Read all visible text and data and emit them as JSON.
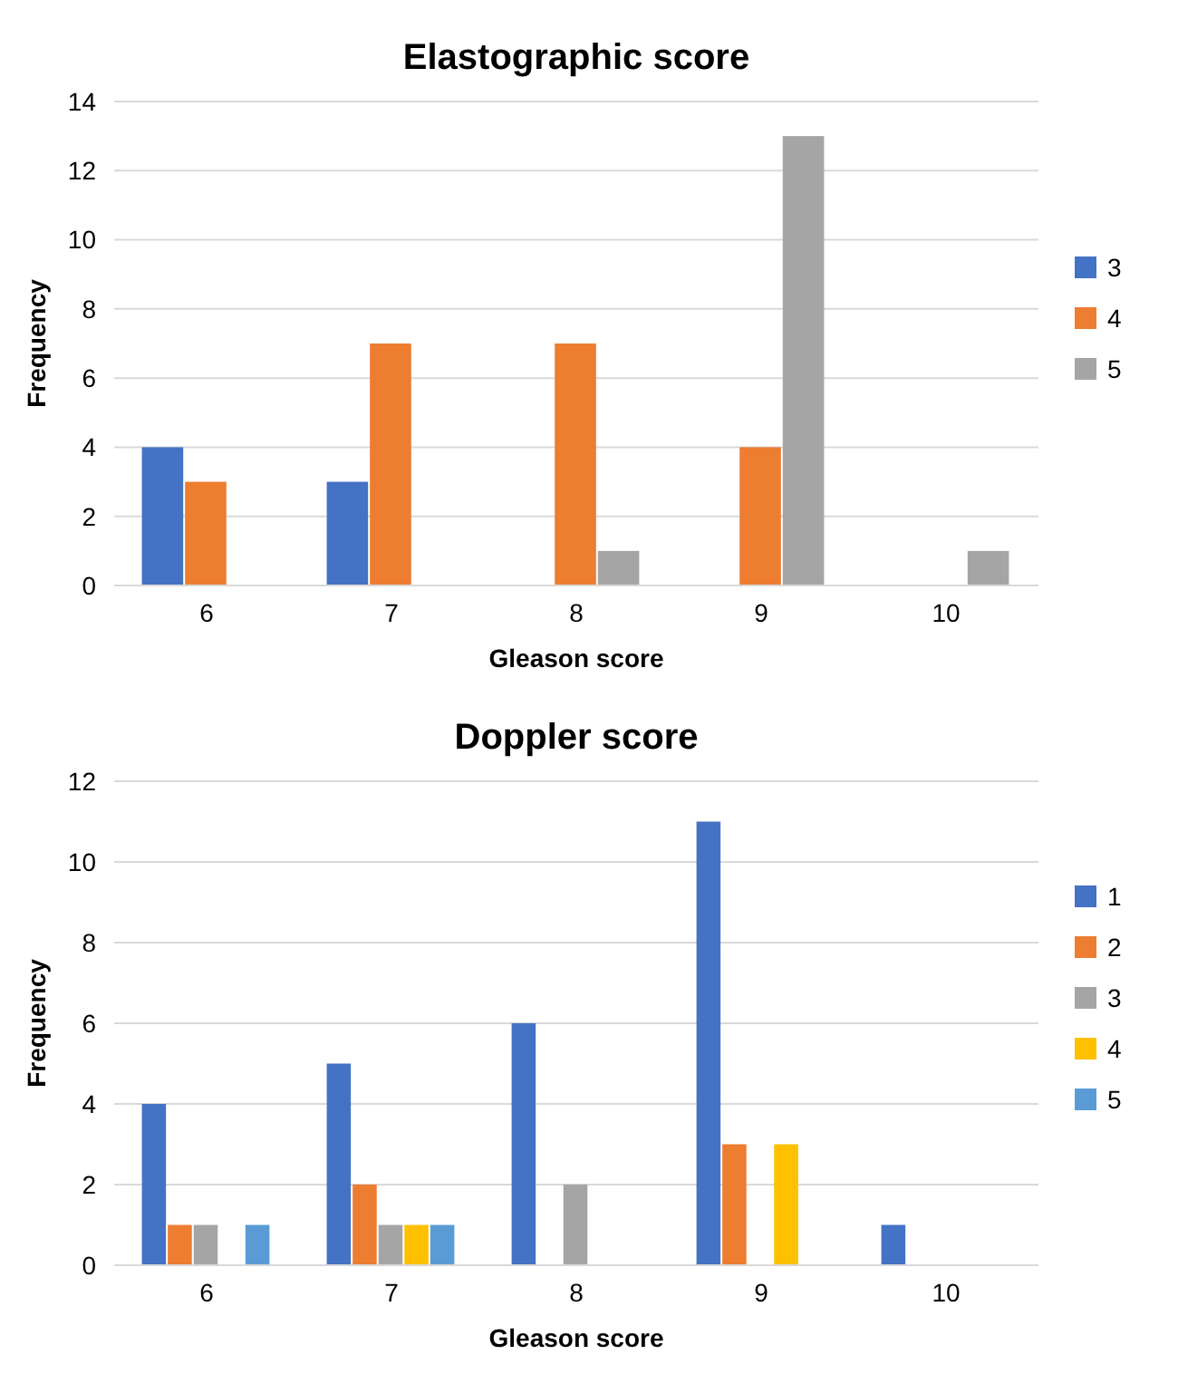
{
  "chart_data": [
    {
      "type": "bar",
      "title": "Elastographic score",
      "xlabel": "Gleason score",
      "ylabel": "Frequency",
      "categories": [
        "6",
        "7",
        "8",
        "9",
        "10"
      ],
      "series": [
        {
          "name": "3",
          "color": "#4472c4",
          "values": [
            4,
            3,
            0,
            0,
            0
          ]
        },
        {
          "name": "4",
          "color": "#ed7d31",
          "values": [
            3,
            7,
            7,
            4,
            0
          ]
        },
        {
          "name": "5",
          "color": "#a5a5a5",
          "values": [
            0,
            0,
            1,
            13,
            1
          ]
        }
      ],
      "ylim": [
        0,
        14
      ],
      "yticks": [
        0,
        2,
        4,
        6,
        8,
        10,
        12,
        14
      ],
      "grid": "y",
      "legend": "right"
    },
    {
      "type": "bar",
      "title": "Doppler score",
      "xlabel": "Gleason score",
      "ylabel": "Frequency",
      "categories": [
        "6",
        "7",
        "8",
        "9",
        "10"
      ],
      "series": [
        {
          "name": "1",
          "color": "#4472c4",
          "values": [
            4,
            5,
            6,
            11,
            1
          ]
        },
        {
          "name": "2",
          "color": "#ed7d31",
          "values": [
            1,
            2,
            0,
            3,
            0
          ]
        },
        {
          "name": "3",
          "color": "#a5a5a5",
          "values": [
            1,
            1,
            2,
            0,
            0
          ]
        },
        {
          "name": "4",
          "color": "#ffc000",
          "values": [
            0,
            1,
            0,
            3,
            0
          ]
        },
        {
          "name": "5",
          "color": "#5b9bd5",
          "values": [
            1,
            1,
            0,
            0,
            0
          ]
        }
      ],
      "ylim": [
        0,
        12
      ],
      "yticks": [
        0,
        2,
        4,
        6,
        8,
        10,
        12
      ],
      "grid": "y",
      "legend": "right"
    }
  ]
}
